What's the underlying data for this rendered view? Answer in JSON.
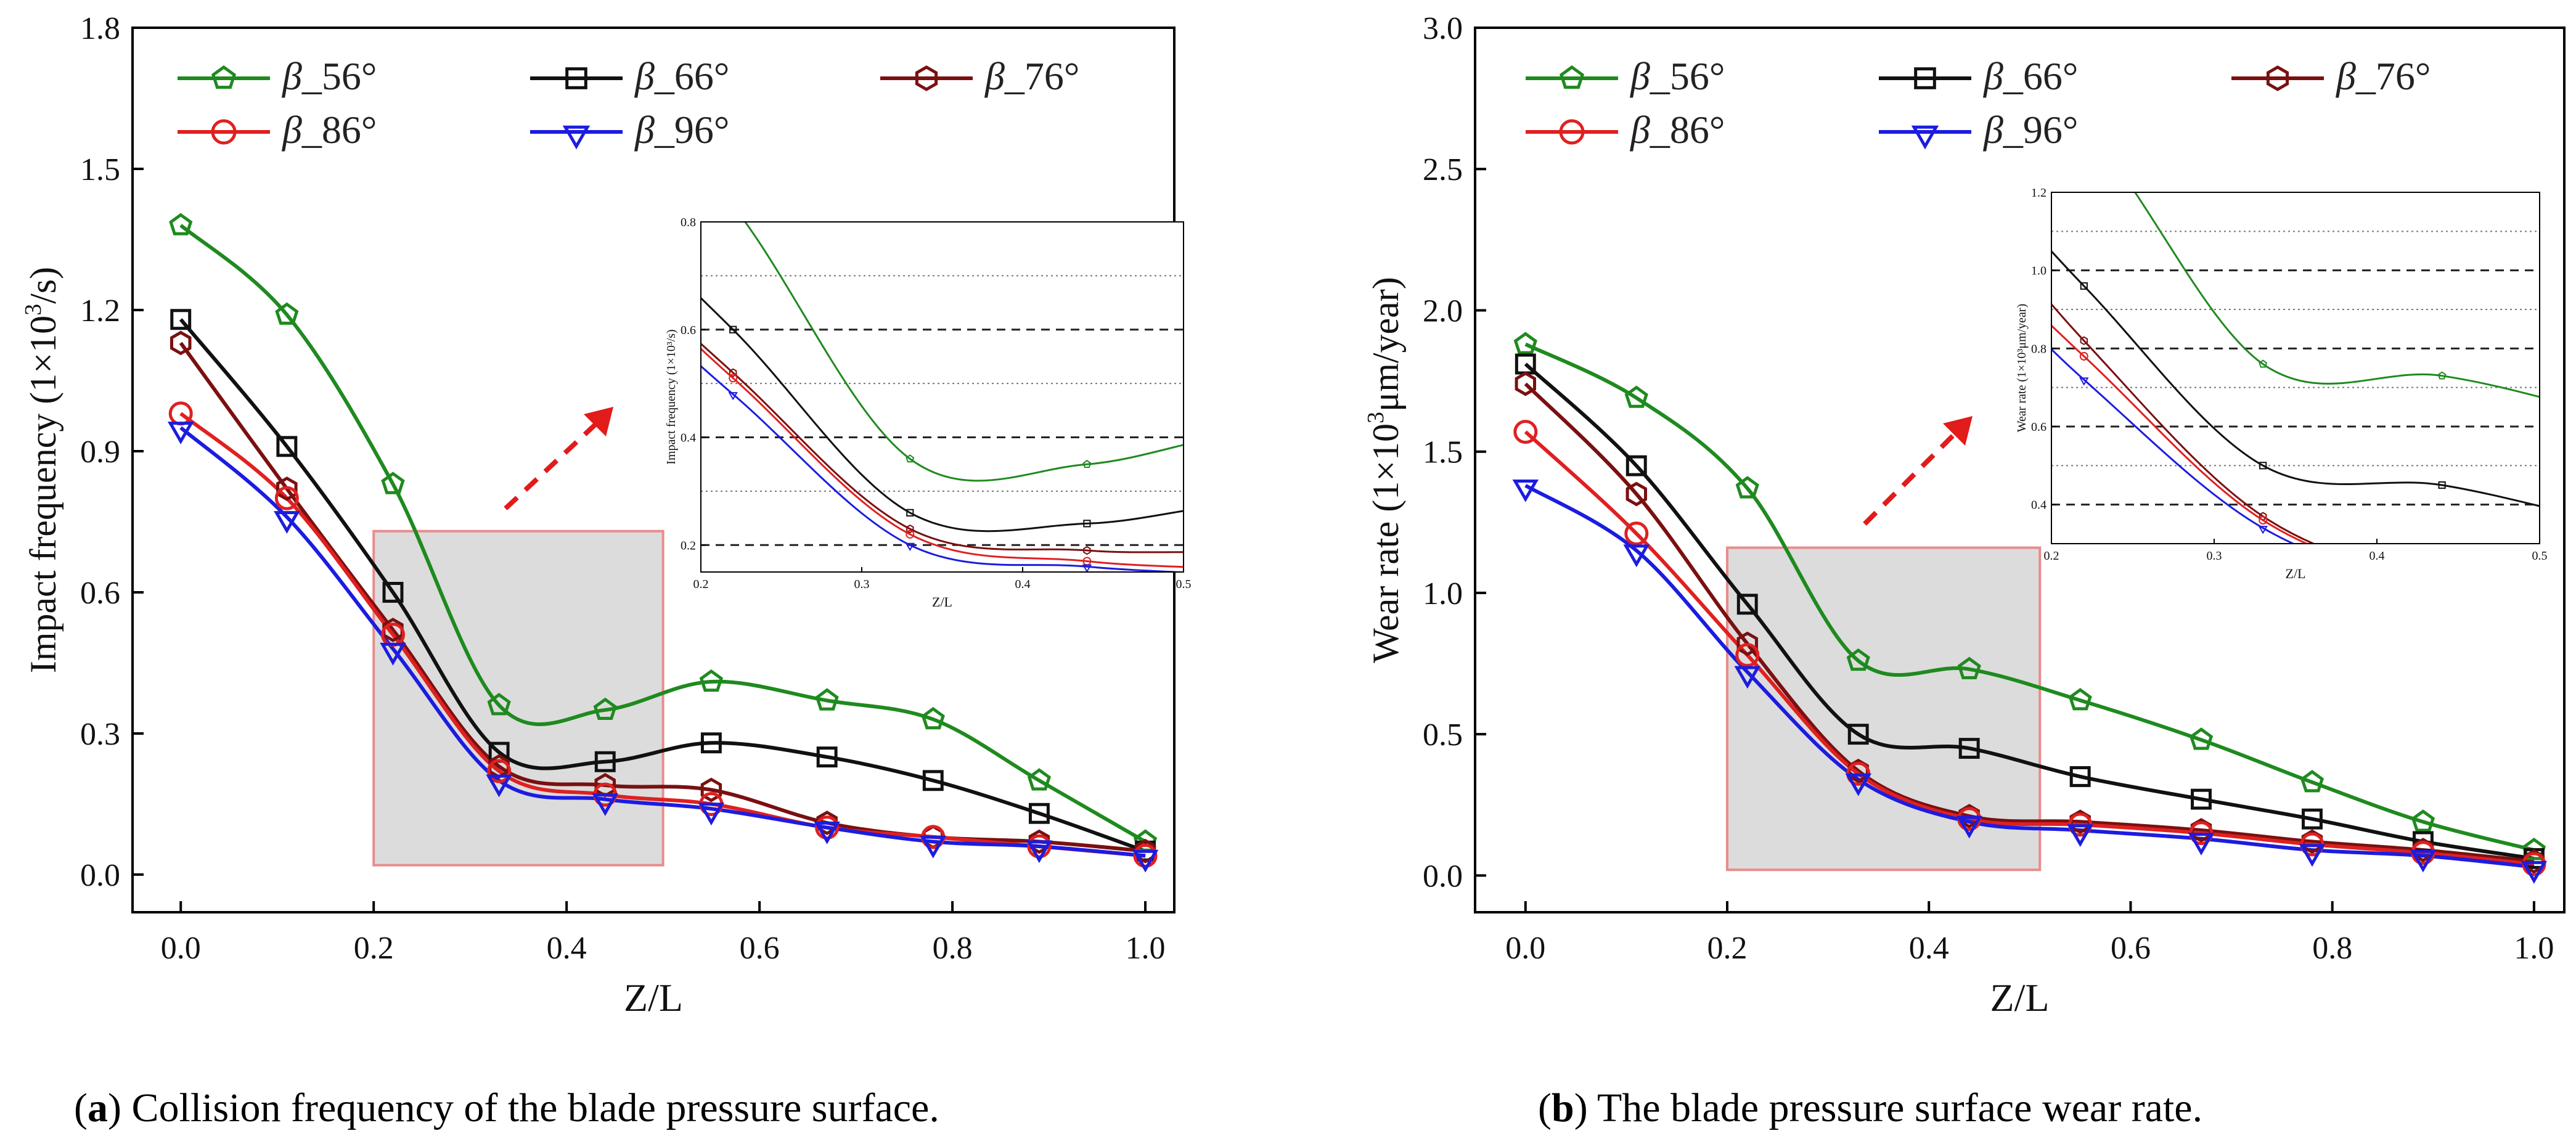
{
  "panels": [
    {
      "id": "a",
      "caption_letter": "a",
      "caption_text": " Collision frequency of the blade pressure surface.",
      "chart_data": {
        "type": "line",
        "xlabel": "Z/L",
        "ylabel_prefix": "Impact frequency (1×10",
        "ylabel_sup": "3",
        "ylabel_suffix": "/s)",
        "xlim": [
          -0.05,
          1.03
        ],
        "ylim": [
          -0.08,
          1.8
        ],
        "xticks": [
          0.0,
          0.2,
          0.4,
          0.6,
          0.8,
          1.0
        ],
        "yticks": [
          0.0,
          0.3,
          0.6,
          0.9,
          1.2,
          1.5,
          1.8
        ],
        "xtick_labels": [
          "0.0",
          "0.2",
          "0.4",
          "0.6",
          "0.8",
          "1.0"
        ],
        "ytick_labels": [
          "0.0",
          "0.3",
          "0.6",
          "0.9",
          "1.2",
          "1.5",
          "1.8"
        ],
        "x": [
          0.0,
          0.11,
          0.22,
          0.33,
          0.44,
          0.55,
          0.67,
          0.78,
          0.89,
          1.0
        ],
        "series": [
          {
            "name": "β_56°",
            "label_beta": "β",
            "label_rest": "_56°",
            "color": "#1f8a1f",
            "marker": "pentagon",
            "values": [
              1.38,
              1.19,
              0.83,
              0.36,
              0.35,
              0.41,
              0.37,
              0.33,
              0.2,
              0.07
            ]
          },
          {
            "name": "β_66°",
            "label_beta": "β",
            "label_rest": "_66°",
            "color": "#111111",
            "marker": "square",
            "values": [
              1.18,
              0.91,
              0.6,
              0.26,
              0.24,
              0.28,
              0.25,
              0.2,
              0.13,
              0.05
            ]
          },
          {
            "name": "β_76°",
            "label_beta": "β",
            "label_rest": "_76°",
            "color": "#7a1010",
            "marker": "hexagon",
            "values": [
              1.13,
              0.82,
              0.52,
              0.23,
              0.19,
              0.18,
              0.11,
              0.08,
              0.07,
              0.05
            ]
          },
          {
            "name": "β_86°",
            "label_beta": "β",
            "label_rest": "_86°",
            "color": "#e02020",
            "marker": "circle",
            "values": [
              0.98,
              0.8,
              0.51,
              0.22,
              0.17,
              0.15,
              0.1,
              0.08,
              0.06,
              0.04
            ]
          },
          {
            "name": "β_96°",
            "label_beta": "β",
            "label_rest": "_96°",
            "color": "#1c1ce0",
            "marker": "triangle-down",
            "values": [
              0.95,
              0.76,
              0.48,
              0.2,
              0.16,
              0.14,
              0.1,
              0.07,
              0.06,
              0.04
            ]
          }
        ],
        "highlight_region": {
          "x": [
            0.2,
            0.5
          ],
          "y": [
            0.02,
            0.73
          ]
        },
        "inset": {
          "xlabel": "Z/L",
          "ylabel": "Impact frequency (1×10³/s)",
          "xlim": [
            0.2,
            0.5
          ],
          "ylim": [
            0.15,
            0.8
          ],
          "xticks": [
            0.2,
            0.3,
            0.4,
            0.5
          ],
          "yticks": [
            0.2,
            0.4,
            0.6,
            0.8
          ],
          "xtick_labels": [
            "0.2",
            "0.3",
            "0.4",
            "0.5"
          ],
          "ytick_labels": [
            "0.2",
            "0.4",
            "0.6",
            "0.8"
          ],
          "dashed_grid": [
            0.2,
            0.4,
            0.6
          ],
          "dotted_grid": [
            0.3,
            0.5,
            0.7
          ]
        }
      }
    },
    {
      "id": "b",
      "caption_letter": "b",
      "caption_text": " The blade pressure surface wear rate.",
      "chart_data": {
        "type": "line",
        "xlabel": "Z/L",
        "ylabel_prefix": "Wear rate (1×10",
        "ylabel_sup": "3",
        "ylabel_suffix": "μm/year)",
        "xlim": [
          -0.05,
          1.03
        ],
        "ylim": [
          -0.13,
          3.0
        ],
        "xticks": [
          0.0,
          0.2,
          0.4,
          0.6,
          0.8,
          1.0
        ],
        "yticks": [
          0.0,
          0.5,
          1.0,
          1.5,
          2.0,
          2.5,
          3.0
        ],
        "xtick_labels": [
          "0.0",
          "0.2",
          "0.4",
          "0.6",
          "0.8",
          "1.0"
        ],
        "ytick_labels": [
          "0.0",
          "0.5",
          "1.0",
          "1.5",
          "2.0",
          "2.5",
          "3.0"
        ],
        "x": [
          0.0,
          0.11,
          0.22,
          0.33,
          0.44,
          0.55,
          0.67,
          0.78,
          0.89,
          1.0
        ],
        "series": [
          {
            "name": "β_56°",
            "label_beta": "β",
            "label_rest": "_56°",
            "color": "#1f8a1f",
            "marker": "pentagon",
            "values": [
              1.88,
              1.69,
              1.37,
              0.76,
              0.73,
              0.62,
              0.48,
              0.33,
              0.19,
              0.09
            ]
          },
          {
            "name": "β_66°",
            "label_beta": "β",
            "label_rest": "_66°",
            "color": "#111111",
            "marker": "square",
            "values": [
              1.81,
              1.45,
              0.96,
              0.5,
              0.45,
              0.35,
              0.27,
              0.2,
              0.12,
              0.06
            ]
          },
          {
            "name": "β_76°",
            "label_beta": "β",
            "label_rest": "_76°",
            "color": "#7a1010",
            "marker": "hexagon",
            "values": [
              1.74,
              1.35,
              0.82,
              0.37,
              0.21,
              0.19,
              0.16,
              0.12,
              0.09,
              0.05
            ]
          },
          {
            "name": "β_86°",
            "label_beta": "β",
            "label_rest": "_86°",
            "color": "#e02020",
            "marker": "circle",
            "values": [
              1.57,
              1.21,
              0.78,
              0.36,
              0.2,
              0.18,
              0.15,
              0.11,
              0.08,
              0.04
            ]
          },
          {
            "name": "β_96°",
            "label_beta": "β",
            "label_rest": "_96°",
            "color": "#1c1ce0",
            "marker": "triangle-down",
            "values": [
              1.38,
              1.15,
              0.72,
              0.34,
              0.19,
              0.16,
              0.13,
              0.09,
              0.07,
              0.03
            ]
          }
        ],
        "highlight_region": {
          "x": [
            0.2,
            0.51
          ],
          "y": [
            0.02,
            1.16
          ]
        },
        "inset": {
          "xlabel": "Z/L",
          "ylabel": "Wear rate (1×10³μm/year)",
          "xlim": [
            0.2,
            0.5
          ],
          "ylim": [
            0.3,
            1.2
          ],
          "xticks": [
            0.2,
            0.3,
            0.4,
            0.5
          ],
          "yticks": [
            0.4,
            0.6,
            0.8,
            1.0,
            1.2
          ],
          "xtick_labels": [
            "0.2",
            "0.3",
            "0.4",
            "0.5"
          ],
          "ytick_labels": [
            "0.4",
            "0.6",
            "0.8",
            "1.0",
            "1.2"
          ],
          "dashed_grid": [
            0.4,
            0.6,
            0.8,
            1.0
          ],
          "dotted_grid": [
            0.5,
            0.7,
            0.9,
            1.1
          ]
        }
      }
    }
  ]
}
